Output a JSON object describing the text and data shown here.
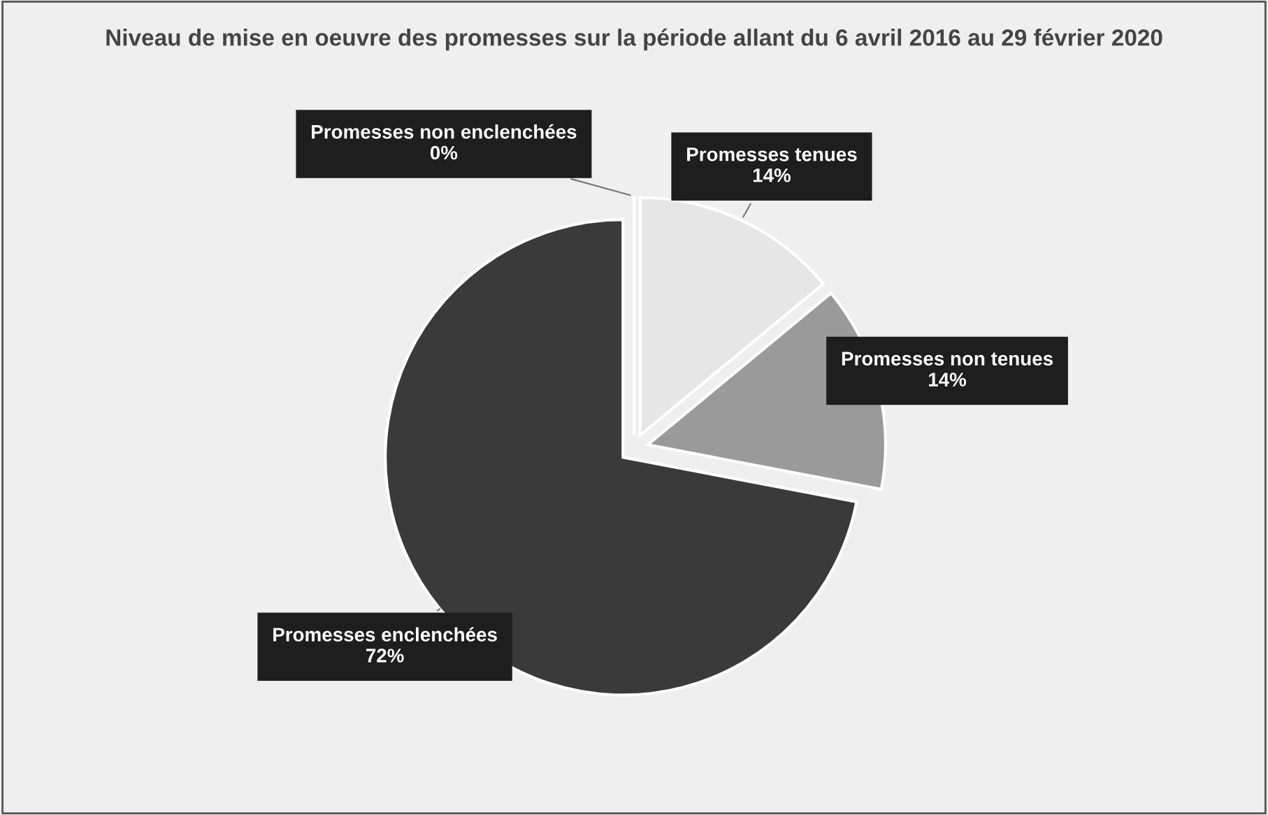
{
  "chart_data": {
    "type": "pie",
    "title": "Niveau de mise en oeuvre des promesses sur la période allant du 6 avril 2016 au 29 février 2020",
    "categories": [
      "Promesses tenues",
      "Promesses non tenues",
      "Promesses enclenchées",
      "Promesses non enclenchées"
    ],
    "values": [
      14,
      14,
      72,
      0
    ],
    "value_labels": [
      "14%",
      "14%",
      "72%",
      "0%"
    ],
    "colors": [
      "#e6e6e6",
      "#9a9a9a",
      "#3a3a3a",
      "#000000"
    ]
  }
}
